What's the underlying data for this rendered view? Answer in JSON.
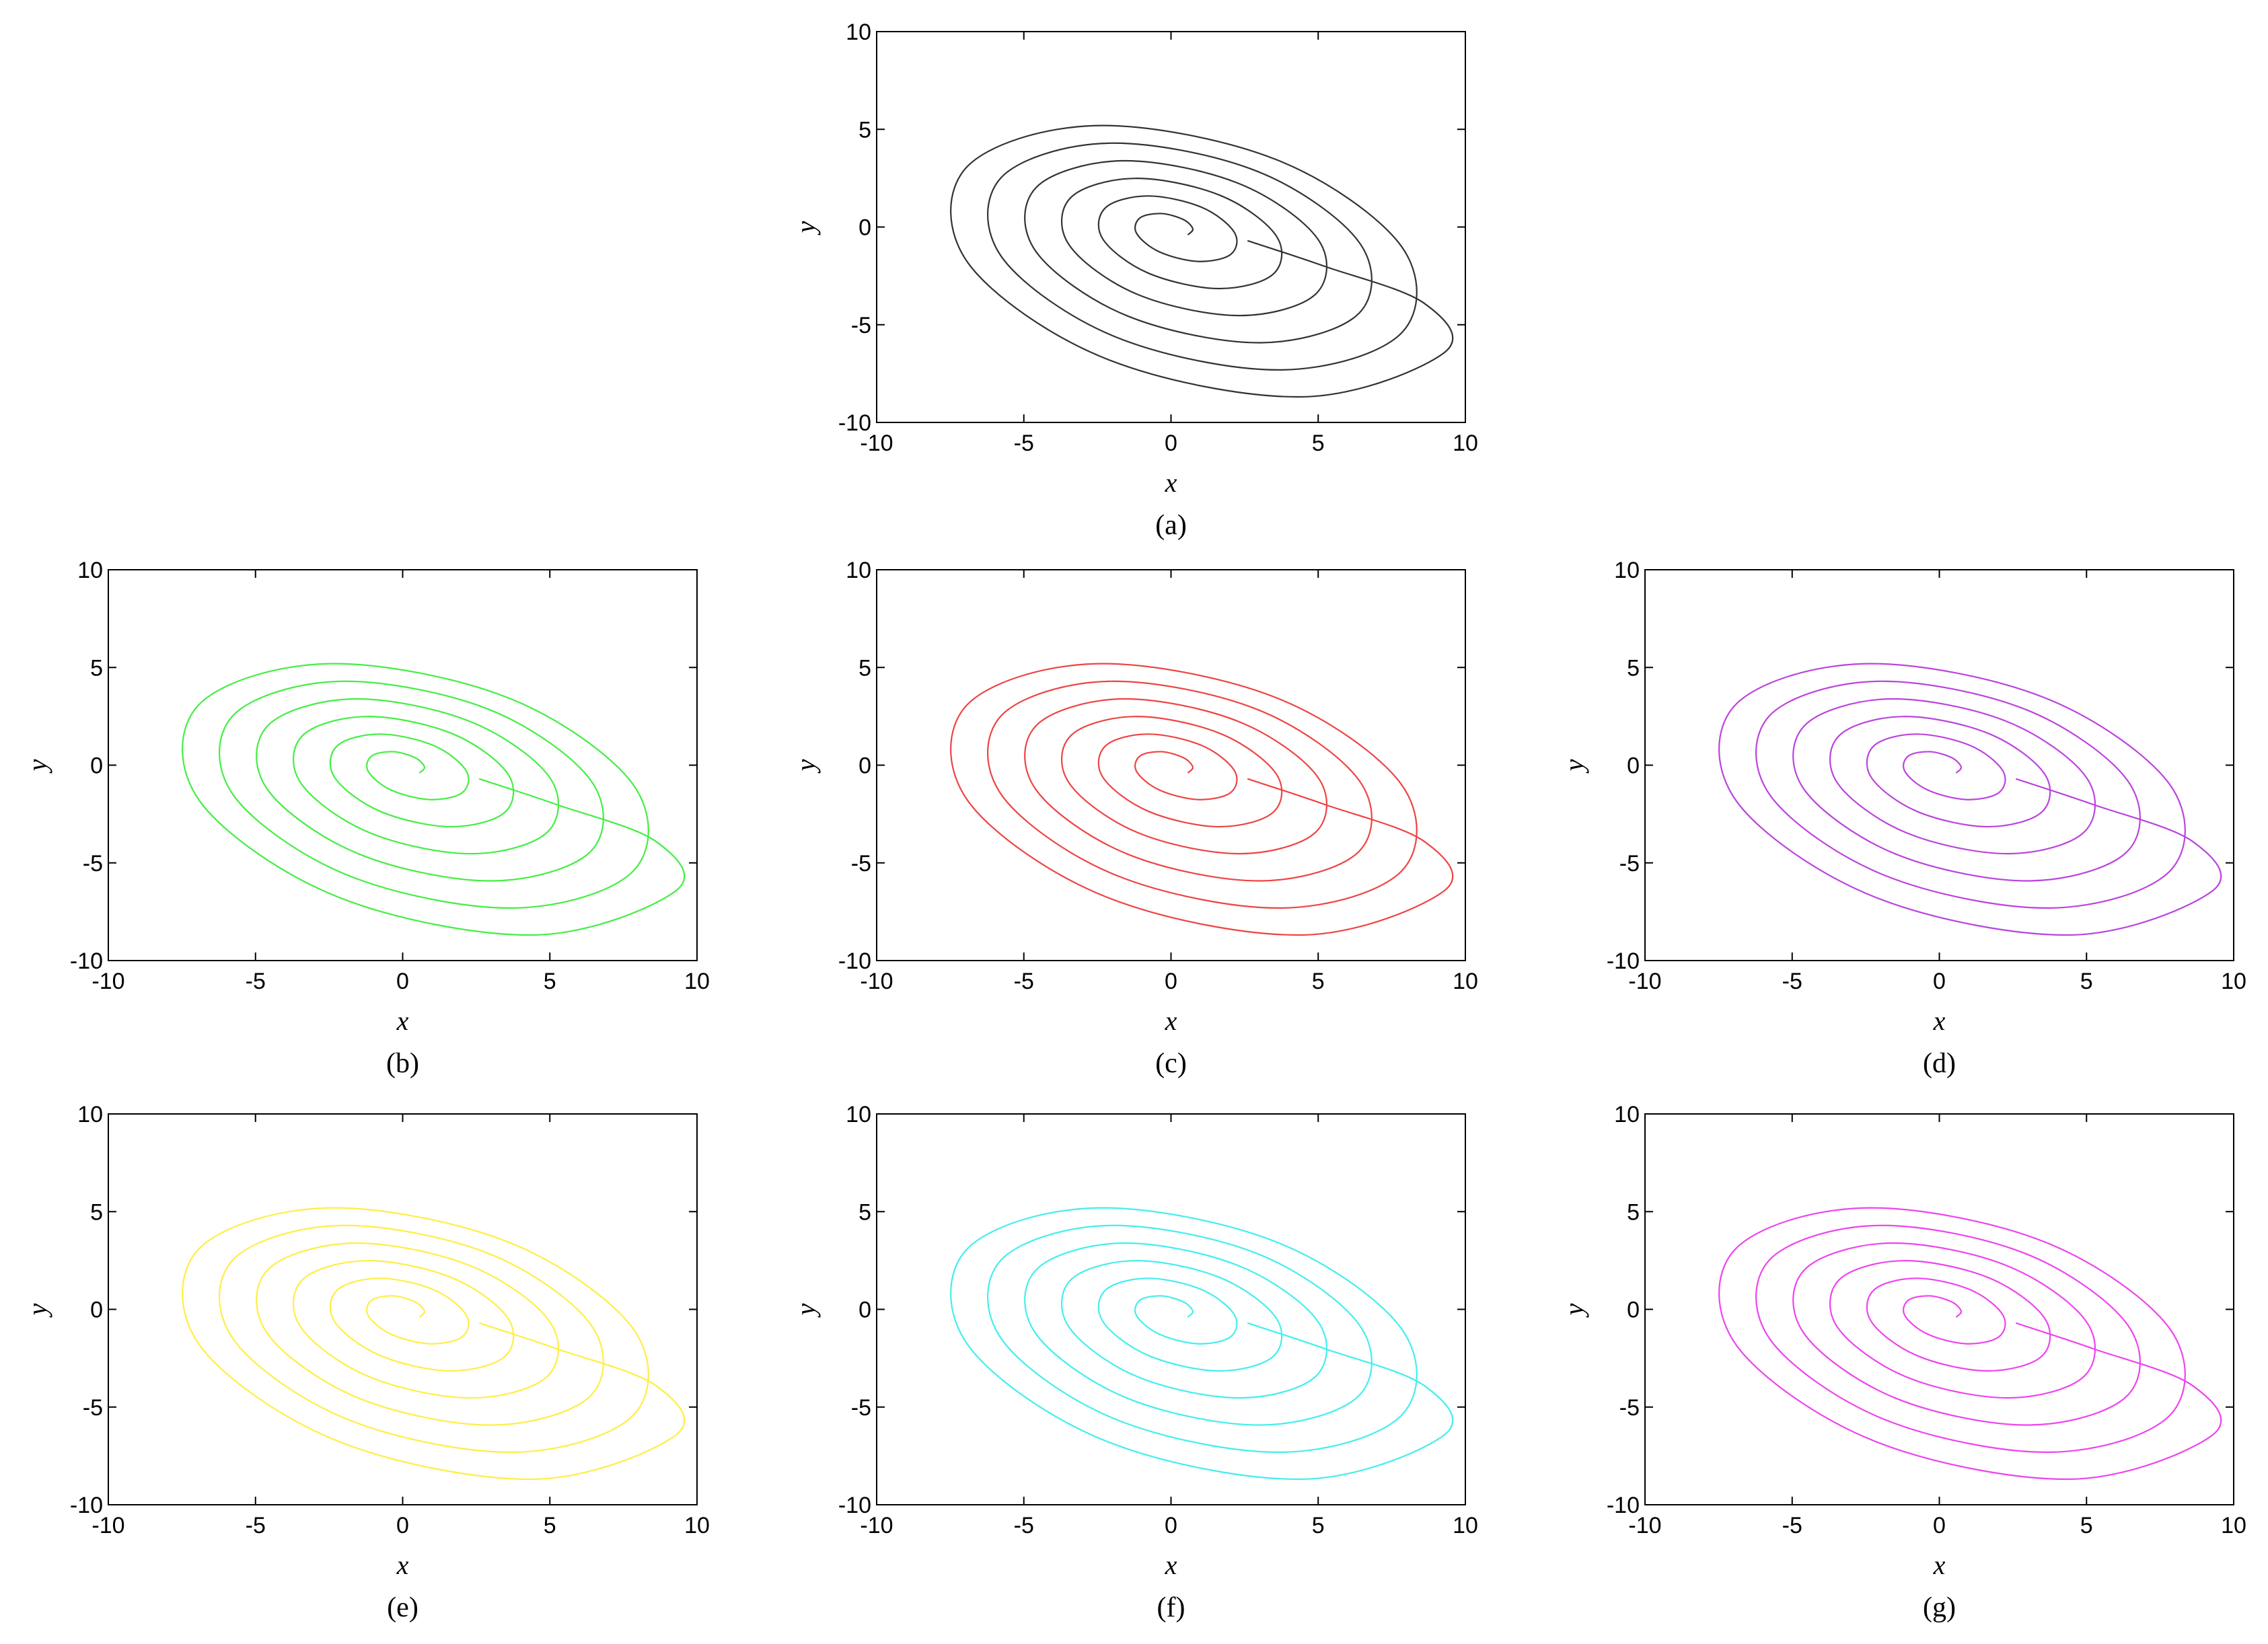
{
  "chart_data": [
    {
      "type": "line",
      "caption": "(a)",
      "xlabel": "x",
      "ylabel": "y",
      "color": "#333333",
      "xlim": [
        -10,
        10
      ],
      "ylim": [
        -10,
        10
      ],
      "xticks": [
        -10,
        -5,
        0,
        5,
        10
      ],
      "yticks": [
        -10,
        -5,
        0,
        5,
        10
      ],
      "x": [
        0.57,
        0.74,
        0.41,
        -0.34,
        -1.06,
        -1.17,
        -0.41,
        0.91,
        2.03,
        2.15,
        1.04,
        -0.79,
        -2.23,
        -2.31,
        -0.77,
        1.63,
        3.48,
        3.57,
        1.67,
        -1.23,
        -3.41,
        -3.45,
        -1.12,
        2.35,
        4.93,
        4.99,
        2.3,
        -1.67,
        -4.59,
        -4.59,
        -1.48,
        3.06,
        6.39,
        6.4,
        2.93,
        -2.12,
        -5.77,
        -5.74,
        -1.84,
        3.78,
        7.84,
        7.82,
        3.56,
        -2.56,
        -6.95,
        -6.88,
        -2.19,
        4.5,
        9.29,
        8.6,
        5.2,
        2.6
      ],
      "values": [
        -0.4,
        -0.09,
        0.39,
        0.69,
        0.46,
        -0.32,
        -1.26,
        -1.76,
        -1.4,
        -0.27,
        1.01,
        1.59,
        0.98,
        -0.63,
        -2.36,
        -3.15,
        -2.4,
        -0.44,
        1.62,
        2.49,
        1.5,
        -0.94,
        -3.46,
        -4.53,
        -3.41,
        -0.62,
        2.23,
        3.39,
        2.01,
        -1.25,
        -4.55,
        -5.92,
        -4.41,
        -0.8,
        2.85,
        4.29,
        2.53,
        -1.56,
        -5.65,
        -7.31,
        -5.41,
        -0.97,
        3.46,
        5.19,
        3.05,
        -1.87,
        -6.75,
        -8.69,
        -6.42,
        -3.9,
        -2.0,
        -0.7
      ]
    },
    {
      "type": "line",
      "caption": "(b)",
      "xlabel": "x",
      "ylabel": "y",
      "color": "#44ee44",
      "xlim": [
        -10,
        10
      ],
      "ylim": [
        -10,
        10
      ],
      "xticks": [
        -10,
        -5,
        0,
        5,
        10
      ],
      "yticks": [
        -10,
        -5,
        0,
        5,
        10
      ],
      "x": [
        0.57,
        0.74,
        0.41,
        -0.34,
        -1.06,
        -1.17,
        -0.41,
        0.91,
        2.03,
        2.15,
        1.04,
        -0.79,
        -2.23,
        -2.31,
        -0.77,
        1.63,
        3.48,
        3.57,
        1.67,
        -1.23,
        -3.41,
        -3.45,
        -1.12,
        2.35,
        4.93,
        4.99,
        2.3,
        -1.67,
        -4.59,
        -4.59,
        -1.48,
        3.06,
        6.39,
        6.4,
        2.93,
        -2.12,
        -5.77,
        -5.74,
        -1.84,
        3.78,
        7.84,
        7.82,
        3.56,
        -2.56,
        -6.95,
        -6.88,
        -2.19,
        4.5,
        9.29,
        8.6,
        5.2,
        2.6
      ],
      "values": [
        -0.4,
        -0.09,
        0.39,
        0.69,
        0.46,
        -0.32,
        -1.26,
        -1.76,
        -1.4,
        -0.27,
        1.01,
        1.59,
        0.98,
        -0.63,
        -2.36,
        -3.15,
        -2.4,
        -0.44,
        1.62,
        2.49,
        1.5,
        -0.94,
        -3.46,
        -4.53,
        -3.41,
        -0.62,
        2.23,
        3.39,
        2.01,
        -1.25,
        -4.55,
        -5.92,
        -4.41,
        -0.8,
        2.85,
        4.29,
        2.53,
        -1.56,
        -5.65,
        -7.31,
        -5.41,
        -0.97,
        3.46,
        5.19,
        3.05,
        -1.87,
        -6.75,
        -8.69,
        -6.42,
        -3.9,
        -2.0,
        -0.7
      ]
    },
    {
      "type": "line",
      "caption": "(c)",
      "xlabel": "x",
      "ylabel": "y",
      "color": "#ee4444",
      "xlim": [
        -10,
        10
      ],
      "ylim": [
        -10,
        10
      ],
      "xticks": [
        -10,
        -5,
        0,
        5,
        10
      ],
      "yticks": [
        -10,
        -5,
        0,
        5,
        10
      ],
      "x": [
        0.57,
        0.74,
        0.41,
        -0.34,
        -1.06,
        -1.17,
        -0.41,
        0.91,
        2.03,
        2.15,
        1.04,
        -0.79,
        -2.23,
        -2.31,
        -0.77,
        1.63,
        3.48,
        3.57,
        1.67,
        -1.23,
        -3.41,
        -3.45,
        -1.12,
        2.35,
        4.93,
        4.99,
        2.3,
        -1.67,
        -4.59,
        -4.59,
        -1.48,
        3.06,
        6.39,
        6.4,
        2.93,
        -2.12,
        -5.77,
        -5.74,
        -1.84,
        3.78,
        7.84,
        7.82,
        3.56,
        -2.56,
        -6.95,
        -6.88,
        -2.19,
        4.5,
        9.29,
        8.6,
        5.2,
        2.6
      ],
      "values": [
        -0.4,
        -0.09,
        0.39,
        0.69,
        0.46,
        -0.32,
        -1.26,
        -1.76,
        -1.4,
        -0.27,
        1.01,
        1.59,
        0.98,
        -0.63,
        -2.36,
        -3.15,
        -2.4,
        -0.44,
        1.62,
        2.49,
        1.5,
        -0.94,
        -3.46,
        -4.53,
        -3.41,
        -0.62,
        2.23,
        3.39,
        2.01,
        -1.25,
        -4.55,
        -5.92,
        -4.41,
        -0.8,
        2.85,
        4.29,
        2.53,
        -1.56,
        -5.65,
        -7.31,
        -5.41,
        -0.97,
        3.46,
        5.19,
        3.05,
        -1.87,
        -6.75,
        -8.69,
        -6.42,
        -3.9,
        -2.0,
        -0.7
      ]
    },
    {
      "type": "line",
      "caption": "(d)",
      "xlabel": "x",
      "ylabel": "y",
      "color": "#bb44dd",
      "xlim": [
        -10,
        10
      ],
      "ylim": [
        -10,
        10
      ],
      "xticks": [
        -10,
        -5,
        0,
        5,
        10
      ],
      "yticks": [
        -10,
        -5,
        0,
        5,
        10
      ],
      "x": [
        0.57,
        0.74,
        0.41,
        -0.34,
        -1.06,
        -1.17,
        -0.41,
        0.91,
        2.03,
        2.15,
        1.04,
        -0.79,
        -2.23,
        -2.31,
        -0.77,
        1.63,
        3.48,
        3.57,
        1.67,
        -1.23,
        -3.41,
        -3.45,
        -1.12,
        2.35,
        4.93,
        4.99,
        2.3,
        -1.67,
        -4.59,
        -4.59,
        -1.48,
        3.06,
        6.39,
        6.4,
        2.93,
        -2.12,
        -5.77,
        -5.74,
        -1.84,
        3.78,
        7.84,
        7.82,
        3.56,
        -2.56,
        -6.95,
        -6.88,
        -2.19,
        4.5,
        9.29,
        8.6,
        5.2,
        2.6
      ],
      "values": [
        -0.4,
        -0.09,
        0.39,
        0.69,
        0.46,
        -0.32,
        -1.26,
        -1.76,
        -1.4,
        -0.27,
        1.01,
        1.59,
        0.98,
        -0.63,
        -2.36,
        -3.15,
        -2.4,
        -0.44,
        1.62,
        2.49,
        1.5,
        -0.94,
        -3.46,
        -4.53,
        -3.41,
        -0.62,
        2.23,
        3.39,
        2.01,
        -1.25,
        -4.55,
        -5.92,
        -4.41,
        -0.8,
        2.85,
        4.29,
        2.53,
        -1.56,
        -5.65,
        -7.31,
        -5.41,
        -0.97,
        3.46,
        5.19,
        3.05,
        -1.87,
        -6.75,
        -8.69,
        -6.42,
        -3.9,
        -2.0,
        -0.7
      ]
    },
    {
      "type": "line",
      "caption": "(e)",
      "xlabel": "x",
      "ylabel": "y",
      "color": "#ffee44",
      "xlim": [
        -10,
        10
      ],
      "ylim": [
        -10,
        10
      ],
      "xticks": [
        -10,
        -5,
        0,
        5,
        10
      ],
      "yticks": [
        -10,
        -5,
        0,
        5,
        10
      ],
      "x": [
        0.57,
        0.74,
        0.41,
        -0.34,
        -1.06,
        -1.17,
        -0.41,
        0.91,
        2.03,
        2.15,
        1.04,
        -0.79,
        -2.23,
        -2.31,
        -0.77,
        1.63,
        3.48,
        3.57,
        1.67,
        -1.23,
        -3.41,
        -3.45,
        -1.12,
        2.35,
        4.93,
        4.99,
        2.3,
        -1.67,
        -4.59,
        -4.59,
        -1.48,
        3.06,
        6.39,
        6.4,
        2.93,
        -2.12,
        -5.77,
        -5.74,
        -1.84,
        3.78,
        7.84,
        7.82,
        3.56,
        -2.56,
        -6.95,
        -6.88,
        -2.19,
        4.5,
        9.29,
        8.6,
        5.2,
        2.6
      ],
      "values": [
        -0.4,
        -0.09,
        0.39,
        0.69,
        0.46,
        -0.32,
        -1.26,
        -1.76,
        -1.4,
        -0.27,
        1.01,
        1.59,
        0.98,
        -0.63,
        -2.36,
        -3.15,
        -2.4,
        -0.44,
        1.62,
        2.49,
        1.5,
        -0.94,
        -3.46,
        -4.53,
        -3.41,
        -0.62,
        2.23,
        3.39,
        2.01,
        -1.25,
        -4.55,
        -5.92,
        -4.41,
        -0.8,
        2.85,
        4.29,
        2.53,
        -1.56,
        -5.65,
        -7.31,
        -5.41,
        -0.97,
        3.46,
        5.19,
        3.05,
        -1.87,
        -6.75,
        -8.69,
        -6.42,
        -3.9,
        -2.0,
        -0.7
      ]
    },
    {
      "type": "line",
      "caption": "(f)",
      "xlabel": "x",
      "ylabel": "y",
      "color": "#44eeee",
      "xlim": [
        -10,
        10
      ],
      "ylim": [
        -10,
        10
      ],
      "xticks": [
        -10,
        -5,
        0,
        5,
        10
      ],
      "yticks": [
        -10,
        -5,
        0,
        5,
        10
      ],
      "x": [
        0.57,
        0.74,
        0.41,
        -0.34,
        -1.06,
        -1.17,
        -0.41,
        0.91,
        2.03,
        2.15,
        1.04,
        -0.79,
        -2.23,
        -2.31,
        -0.77,
        1.63,
        3.48,
        3.57,
        1.67,
        -1.23,
        -3.41,
        -3.45,
        -1.12,
        2.35,
        4.93,
        4.99,
        2.3,
        -1.67,
        -4.59,
        -4.59,
        -1.48,
        3.06,
        6.39,
        6.4,
        2.93,
        -2.12,
        -5.77,
        -5.74,
        -1.84,
        3.78,
        7.84,
        7.82,
        3.56,
        -2.56,
        -6.95,
        -6.88,
        -2.19,
        4.5,
        9.29,
        8.6,
        5.2,
        2.6
      ],
      "values": [
        -0.4,
        -0.09,
        0.39,
        0.69,
        0.46,
        -0.32,
        -1.26,
        -1.76,
        -1.4,
        -0.27,
        1.01,
        1.59,
        0.98,
        -0.63,
        -2.36,
        -3.15,
        -2.4,
        -0.44,
        1.62,
        2.49,
        1.5,
        -0.94,
        -3.46,
        -4.53,
        -3.41,
        -0.62,
        2.23,
        3.39,
        2.01,
        -1.25,
        -4.55,
        -5.92,
        -4.41,
        -0.8,
        2.85,
        4.29,
        2.53,
        -1.56,
        -5.65,
        -7.31,
        -5.41,
        -0.97,
        3.46,
        5.19,
        3.05,
        -1.87,
        -6.75,
        -8.69,
        -6.42,
        -3.9,
        -2.0,
        -0.7
      ]
    },
    {
      "type": "line",
      "caption": "(g)",
      "xlabel": "x",
      "ylabel": "y",
      "color": "#ee44ee",
      "xlim": [
        -10,
        10
      ],
      "ylim": [
        -10,
        10
      ],
      "xticks": [
        -10,
        -5,
        0,
        5,
        10
      ],
      "yticks": [
        -10,
        -5,
        0,
        5,
        10
      ],
      "x": [
        0.57,
        0.74,
        0.41,
        -0.34,
        -1.06,
        -1.17,
        -0.41,
        0.91,
        2.03,
        2.15,
        1.04,
        -0.79,
        -2.23,
        -2.31,
        -0.77,
        1.63,
        3.48,
        3.57,
        1.67,
        -1.23,
        -3.41,
        -3.45,
        -1.12,
        2.35,
        4.93,
        4.99,
        2.3,
        -1.67,
        -4.59,
        -4.59,
        -1.48,
        3.06,
        6.39,
        6.4,
        2.93,
        -2.12,
        -5.77,
        -5.74,
        -1.84,
        3.78,
        7.84,
        7.82,
        3.56,
        -2.56,
        -6.95,
        -6.88,
        -2.19,
        4.5,
        9.29,
        8.6,
        5.2,
        2.6
      ],
      "values": [
        -0.4,
        -0.09,
        0.39,
        0.69,
        0.46,
        -0.32,
        -1.26,
        -1.76,
        -1.4,
        -0.27,
        1.01,
        1.59,
        0.98,
        -0.63,
        -2.36,
        -3.15,
        -2.4,
        -0.44,
        1.62,
        2.49,
        1.5,
        -0.94,
        -3.46,
        -4.53,
        -3.41,
        -0.62,
        2.23,
        3.39,
        2.01,
        -1.25,
        -4.55,
        -5.92,
        -4.41,
        -0.8,
        2.85,
        4.29,
        2.53,
        -1.56,
        -5.65,
        -7.31,
        -5.41,
        -0.97,
        3.46,
        5.19,
        3.05,
        -1.87,
        -6.75,
        -8.69,
        -6.42,
        -3.9,
        -2.0,
        -0.7
      ]
    }
  ]
}
